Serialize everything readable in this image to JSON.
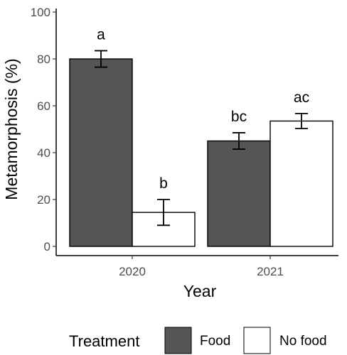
{
  "chart_data": {
    "type": "bar",
    "xlabel": "Year",
    "ylabel": "Metamorphosis (%)",
    "ylim": [
      0,
      100
    ],
    "yticks": [
      "0",
      "20",
      "40",
      "60",
      "80",
      "100"
    ],
    "categories": [
      "2020",
      "2021"
    ],
    "series": [
      {
        "name": "Food",
        "color": "#555555",
        "values": [
          80,
          45
        ],
        "error": [
          3.5,
          3.5
        ],
        "sig_labels": [
          "a",
          "bc"
        ]
      },
      {
        "name": "No food",
        "color": "#ffffff",
        "values": [
          14.5,
          53.5
        ],
        "error": [
          5.5,
          3.2
        ],
        "sig_labels": [
          "b",
          "ac"
        ]
      }
    ],
    "legend": {
      "title": "Treatment",
      "position": "bottom",
      "items": [
        "Food",
        "No food"
      ]
    },
    "grid": false
  }
}
